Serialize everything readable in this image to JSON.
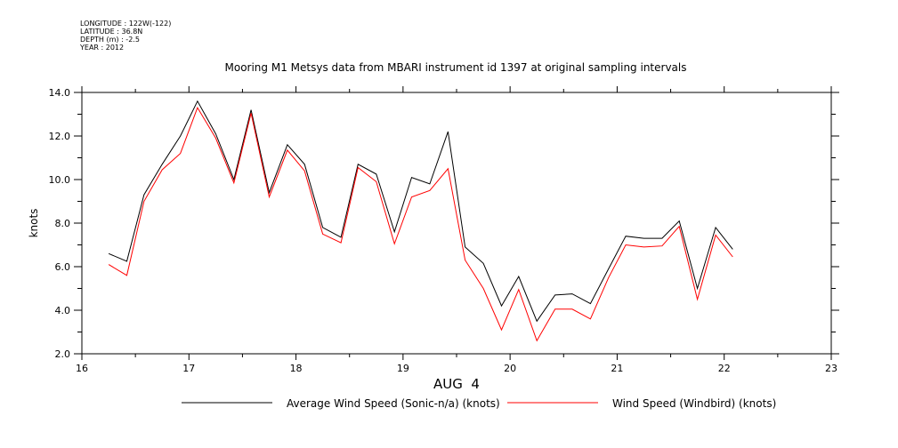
{
  "header": {
    "longitude": "LONGITUDE : 122W(-122)",
    "latitude": "LATITUDE : 36.8N",
    "depth": "DEPTH (m) : -2.5",
    "year": "YEAR : 2012"
  },
  "chart_data": {
    "type": "line",
    "title": "Mooring M1 Metsys data from MBARI instrument id 1397 at original sampling intervals",
    "xlabel": "AUG  4",
    "ylabel": "knots",
    "xlim": [
      16,
      23
    ],
    "ylim": [
      2.0,
      14.0
    ],
    "x_ticks": [
      "16",
      "17",
      "18",
      "19",
      "20",
      "21",
      "22",
      "23"
    ],
    "y_ticks": [
      "2.0",
      "4.0",
      "6.0",
      "8.0",
      "10.0",
      "12.0",
      "14.0"
    ],
    "grid": false,
    "legend_position": "bottom",
    "x": [
      16.25,
      16.42,
      16.58,
      16.75,
      16.92,
      17.08,
      17.25,
      17.42,
      17.58,
      17.75,
      17.92,
      18.08,
      18.25,
      18.42,
      18.58,
      18.75,
      18.92,
      19.08,
      19.25,
      19.42,
      19.58,
      19.75,
      19.92,
      20.08,
      20.25,
      20.42,
      20.58,
      20.75,
      20.92,
      21.08,
      21.25,
      21.42,
      21.58,
      21.75,
      21.92,
      22.08
    ],
    "series": [
      {
        "name": "Average Wind Speed (Sonic-n/a) (knots)",
        "color": "#000000",
        "values": [
          6.6,
          6.25,
          9.3,
          10.7,
          12.0,
          13.6,
          12.1,
          10.0,
          13.2,
          9.4,
          11.6,
          10.7,
          7.8,
          7.35,
          10.7,
          10.25,
          7.6,
          10.1,
          9.8,
          12.2,
          6.9,
          6.15,
          4.2,
          5.55,
          3.5,
          4.7,
          4.75,
          4.3,
          5.9,
          7.4,
          7.3,
          7.3,
          8.1,
          5.0,
          7.8,
          6.8
        ]
      },
      {
        "name": "Wind Speed (Windbird) (knots)",
        "color": "#ff0000",
        "values": [
          6.1,
          5.6,
          9.0,
          10.45,
          11.2,
          13.3,
          11.9,
          9.85,
          13.05,
          9.2,
          11.35,
          10.4,
          7.5,
          7.1,
          10.55,
          9.9,
          7.05,
          9.2,
          9.5,
          10.5,
          6.3,
          5.0,
          3.1,
          4.95,
          2.6,
          4.05,
          4.05,
          3.6,
          5.5,
          7.0,
          6.9,
          6.95,
          7.85,
          4.5,
          7.45,
          6.45
        ]
      }
    ]
  }
}
